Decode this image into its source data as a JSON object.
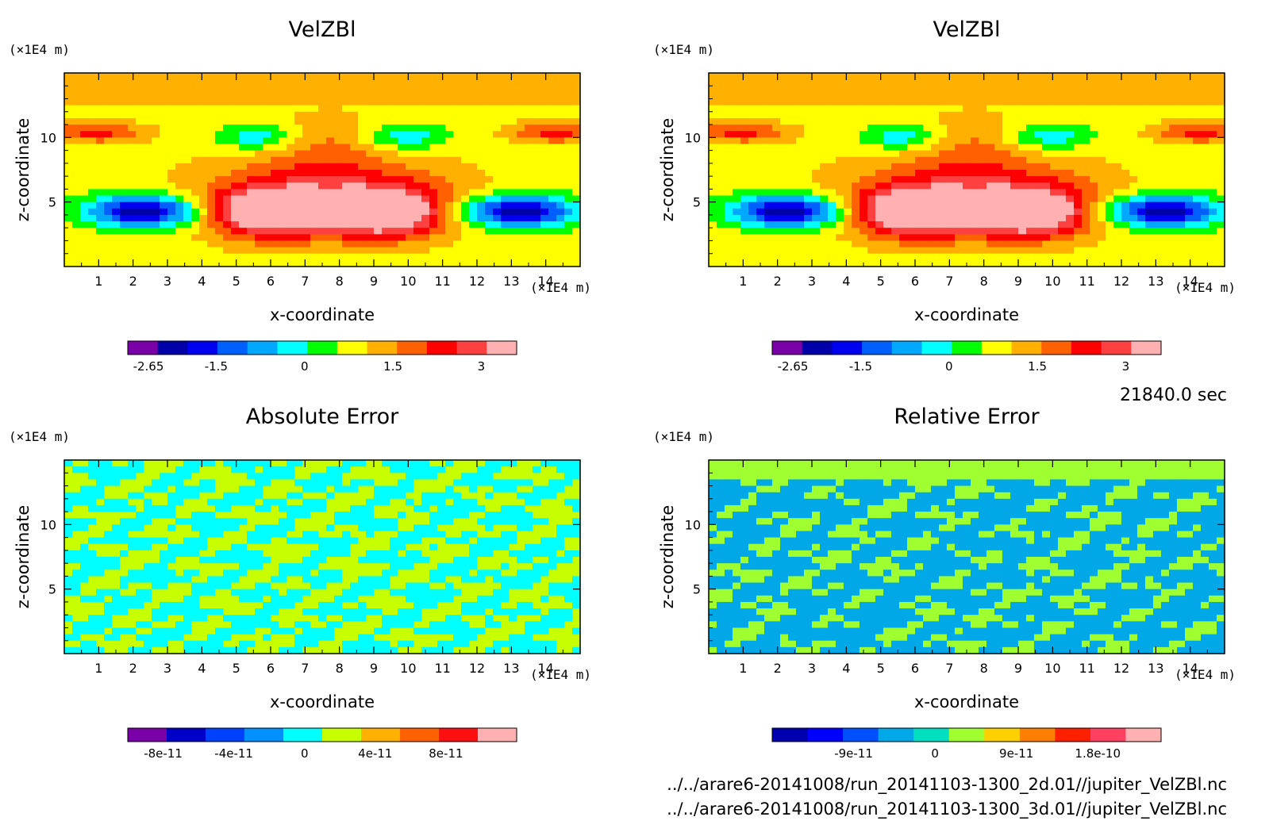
{
  "time_label": "21840.0 sec",
  "footer": {
    "line1": "../../arare6-20141008/run_20141103-1300_2d.01//jupiter_VelZBl.nc",
    "line2": "../../arare6-20141008/run_20141103-1300_3d.01//jupiter_VelZBl.nc"
  },
  "chart_data": [
    {
      "type": "heatmap",
      "title": "VelZBl",
      "xlabel": "x-coordinate",
      "ylabel": "z-coordinate",
      "x_unit": "(×1E4 m)",
      "y_unit": "(×1E4 m)",
      "xlim": [
        0,
        15
      ],
      "ylim": [
        0,
        15
      ],
      "x_ticks": [
        "1",
        "2",
        "3",
        "4",
        "5",
        "6",
        "7",
        "8",
        "9",
        "10",
        "11",
        "12",
        "13",
        "14"
      ],
      "y_ticks": [
        "5",
        "10"
      ],
      "colorbar": {
        "colors": [
          "#7a00a8",
          "#0000a8",
          "#0000f0",
          "#0060ff",
          "#00a8ff",
          "#00ffff",
          "#00ff00",
          "#ffff00",
          "#ffb000",
          "#ff6000",
          "#ff0000",
          "#ff4040",
          "#ffb0b0"
        ],
        "tick_labels": [
          "-2.65",
          "-1.5",
          "0",
          "1.5",
          "3"
        ],
        "tick_values": [
          -2.65,
          -1.5,
          0,
          1.5,
          3
        ],
        "range": [
          -3.0,
          3.6
        ]
      }
    },
    {
      "type": "heatmap",
      "title": "VelZBl",
      "xlabel": "x-coordinate",
      "ylabel": "z-coordinate",
      "x_unit": "(×1E4 m)",
      "y_unit": "(×1E4 m)",
      "xlim": [
        0,
        15
      ],
      "ylim": [
        0,
        15
      ],
      "x_ticks": [
        "1",
        "2",
        "3",
        "4",
        "5",
        "6",
        "7",
        "8",
        "9",
        "10",
        "11",
        "12",
        "13",
        "14"
      ],
      "y_ticks": [
        "5",
        "10"
      ],
      "colorbar": {
        "colors": [
          "#7a00a8",
          "#0000a8",
          "#0000f0",
          "#0060ff",
          "#00a8ff",
          "#00ffff",
          "#00ff00",
          "#ffff00",
          "#ffb000",
          "#ff6000",
          "#ff0000",
          "#ff4040",
          "#ffb0b0"
        ],
        "tick_labels": [
          "-2.65",
          "-1.5",
          "0",
          "1.5",
          "3"
        ],
        "tick_values": [
          -2.65,
          -1.5,
          0,
          1.5,
          3
        ],
        "range": [
          -3.0,
          3.6
        ]
      }
    },
    {
      "type": "heatmap",
      "title": "Absolute Error",
      "xlabel": "x-coordinate",
      "ylabel": "z-coordinate",
      "x_unit": "(×1E4 m)",
      "y_unit": "(×1E4 m)",
      "xlim": [
        0,
        15
      ],
      "ylim": [
        0,
        15
      ],
      "x_ticks": [
        "1",
        "2",
        "3",
        "4",
        "5",
        "6",
        "7",
        "8",
        "9",
        "10",
        "11",
        "12",
        "13",
        "14"
      ],
      "y_ticks": [
        "5",
        "10"
      ],
      "colorbar": {
        "colors": [
          "#7a00a8",
          "#0000c8",
          "#0040ff",
          "#0090ff",
          "#00ffff",
          "#c8ff00",
          "#ffb000",
          "#ff6000",
          "#ff1010",
          "#ffb0b0"
        ],
        "tick_labels": [
          "-8e-11",
          "-4e-11",
          "0",
          "4e-11",
          "8e-11"
        ],
        "tick_values": [
          -8e-11,
          -4e-11,
          0,
          4e-11,
          8e-11
        ],
        "range": [
          -1e-10,
          1.2e-10
        ]
      }
    },
    {
      "type": "heatmap",
      "title": "Relative Error",
      "xlabel": "x-coordinate",
      "ylabel": "z-coordinate",
      "x_unit": "(×1E4 m)",
      "y_unit": "(×1E4 m)",
      "xlim": [
        0,
        15
      ],
      "ylim": [
        0,
        15
      ],
      "x_ticks": [
        "1",
        "2",
        "3",
        "4",
        "5",
        "6",
        "7",
        "8",
        "9",
        "10",
        "11",
        "12",
        "13",
        "14"
      ],
      "y_ticks": [
        "5",
        "10"
      ],
      "colorbar": {
        "colors": [
          "#0000b0",
          "#0000ff",
          "#0050ff",
          "#00a8e8",
          "#00e0c0",
          "#a0ff30",
          "#ffd000",
          "#ff8000",
          "#ff2000",
          "#ff4060",
          "#ffb0b0"
        ],
        "tick_labels": [
          "-9e-11",
          "0",
          "9e-11",
          "1.8e-10"
        ],
        "tick_values": [
          -9e-11,
          0,
          9e-11,
          1.8e-10
        ],
        "range": [
          -1.8e-10,
          2.5e-10
        ]
      }
    }
  ]
}
